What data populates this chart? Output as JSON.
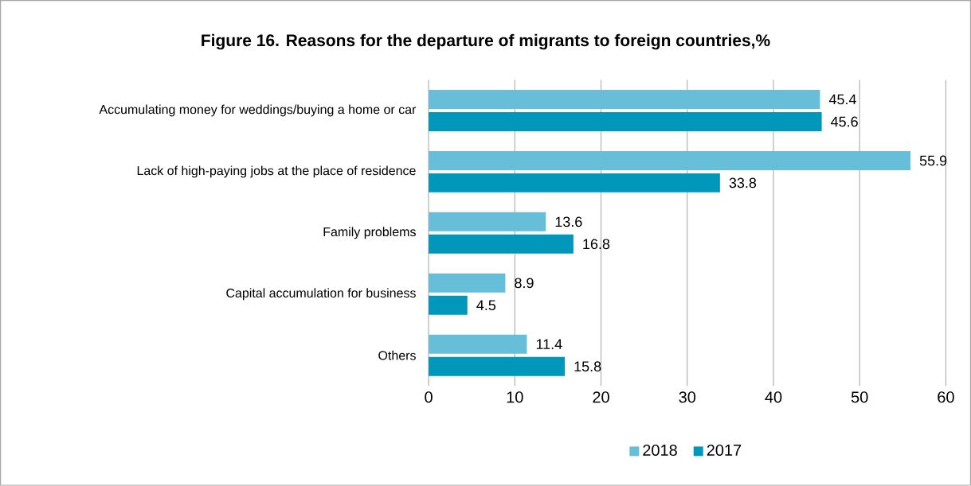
{
  "chart_data": {
    "type": "bar",
    "orientation": "horizontal",
    "title": "Figure 16. Reasons for the departure of migrants to foreign countries,%",
    "categories": [
      "Accumulating money for weddings/buying a home or car",
      "Lack of high-paying jobs at the place of residence",
      "Family problems",
      "Capital accumulation for business",
      "Others"
    ],
    "series": [
      {
        "name": "2018",
        "color": "#67bed8",
        "values": [
          45.4,
          55.9,
          13.6,
          8.9,
          11.4
        ]
      },
      {
        "name": "2017",
        "color": "#0097bb",
        "values": [
          45.6,
          33.8,
          16.8,
          4.5,
          15.8
        ]
      }
    ],
    "xlim": [
      0,
      60
    ],
    "xticks": [
      0,
      10,
      20,
      30,
      40,
      50,
      60
    ],
    "grid": "x",
    "legend": "bottom",
    "data_labels": true
  }
}
